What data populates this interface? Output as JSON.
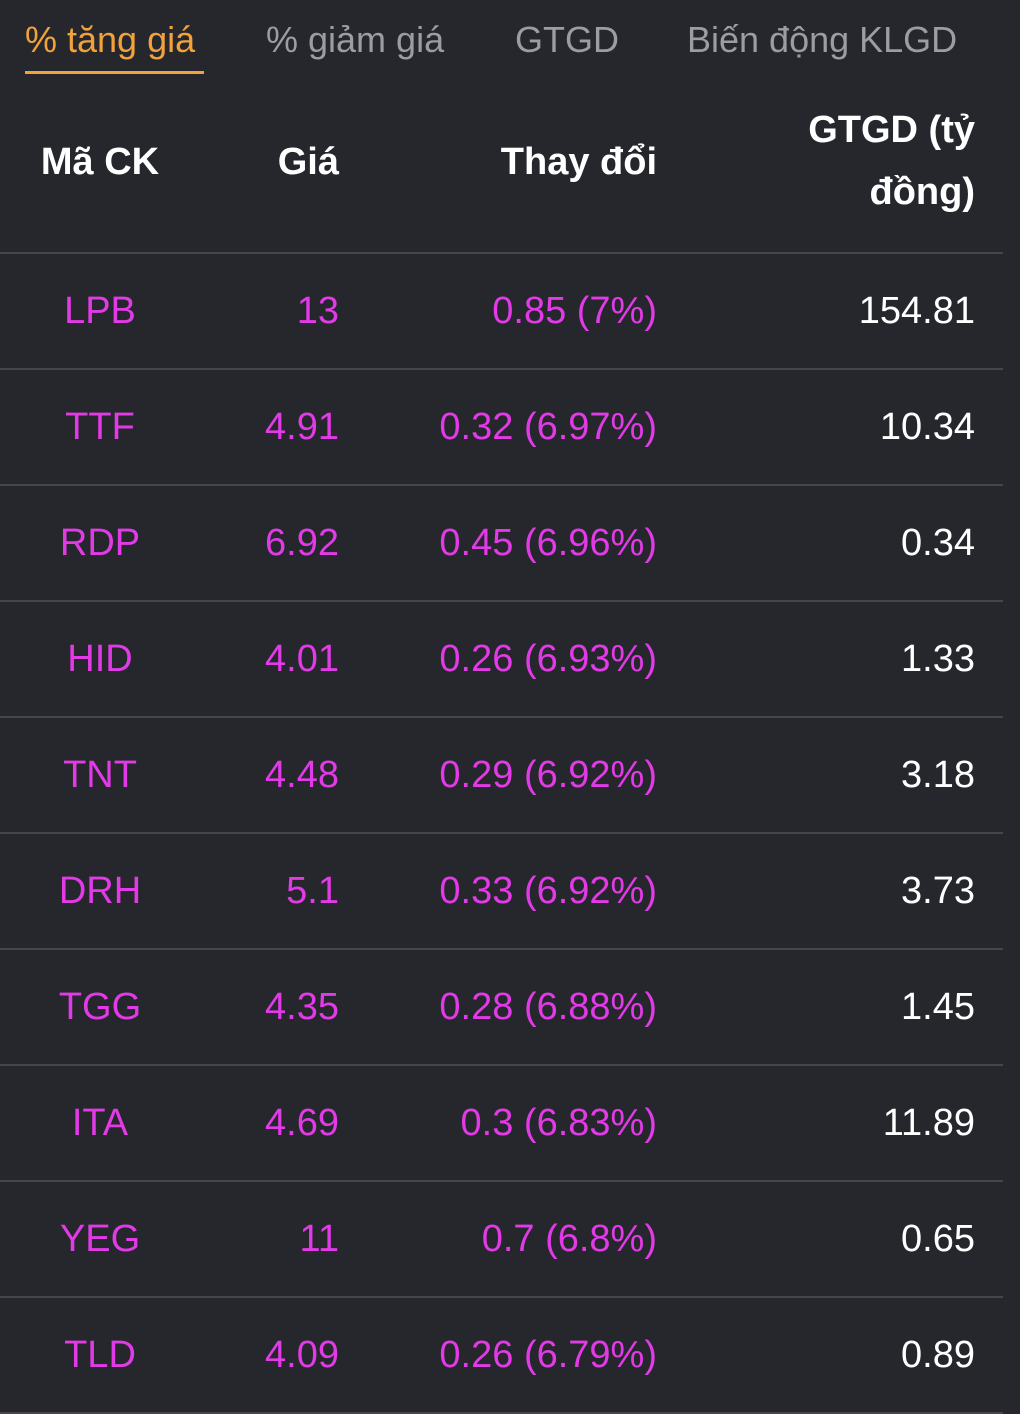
{
  "colors": {
    "background": "#26272d",
    "accent": "#f2a23a",
    "inactive_tab": "#9c9ca3",
    "price_up": "#e13ae6",
    "divider": "#45464d",
    "text": "#ffffff"
  },
  "tabs": [
    {
      "label": "% tăng giá",
      "active": true
    },
    {
      "label": "% giảm giá",
      "active": false
    },
    {
      "label": "GTGD",
      "active": false
    },
    {
      "label": "Biến động KLGD",
      "active": false
    }
  ],
  "table": {
    "headers": {
      "code": "Mã CK",
      "price": "Giá",
      "change": "Thay đổi",
      "value": "GTGD (tỷ đồng)"
    },
    "rows": [
      {
        "code": "LPB",
        "price": "13",
        "change": "0.85 (7%)",
        "value": "154.81"
      },
      {
        "code": "TTF",
        "price": "4.91",
        "change": "0.32 (6.97%)",
        "value": "10.34"
      },
      {
        "code": "RDP",
        "price": "6.92",
        "change": "0.45 (6.96%)",
        "value": "0.34"
      },
      {
        "code": "HID",
        "price": "4.01",
        "change": "0.26 (6.93%)",
        "value": "1.33"
      },
      {
        "code": "TNT",
        "price": "4.48",
        "change": "0.29 (6.92%)",
        "value": "3.18"
      },
      {
        "code": "DRH",
        "price": "5.1",
        "change": "0.33 (6.92%)",
        "value": "3.73"
      },
      {
        "code": "TGG",
        "price": "4.35",
        "change": "0.28 (6.88%)",
        "value": "1.45"
      },
      {
        "code": "ITA",
        "price": "4.69",
        "change": "0.3 (6.83%)",
        "value": "11.89"
      },
      {
        "code": "YEG",
        "price": "11",
        "change": "0.7 (6.8%)",
        "value": "0.65"
      },
      {
        "code": "TLD",
        "price": "4.09",
        "change": "0.26 (6.79%)",
        "value": "0.89"
      }
    ]
  }
}
